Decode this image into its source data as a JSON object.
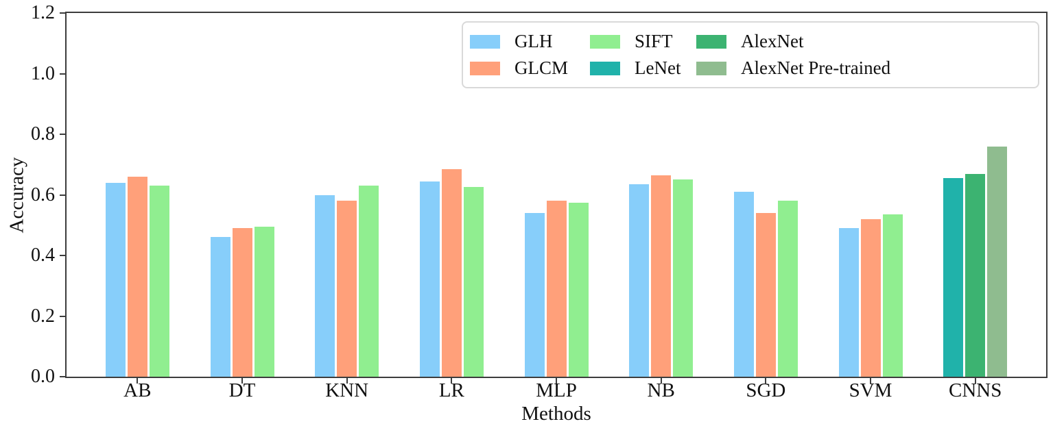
{
  "chart_data": {
    "type": "bar",
    "title": "",
    "xlabel": "Methods",
    "ylabel": "Accuracy",
    "ylim": [
      0,
      1.2
    ],
    "yticks": [
      0,
      0.2,
      0.4,
      0.6,
      0.8,
      1.0,
      1.2
    ],
    "grid": false,
    "legend_position": "upper right inside, 3 columns x 2 rows",
    "axis_color": "#3c3c3c",
    "legend_border_color": "#d9d9d9",
    "categories": [
      "AB",
      "DT",
      "KNN",
      "LR",
      "MLP",
      "NB",
      "SGD",
      "SVM",
      "CNNS"
    ],
    "series": [
      {
        "name": "GLH",
        "color": "#87CEFA",
        "values": [
          0.64,
          0.46,
          0.6,
          0.645,
          0.54,
          0.635,
          0.61,
          0.49,
          null
        ]
      },
      {
        "name": "GLCM",
        "color": "#FFA07A",
        "values": [
          0.66,
          0.49,
          0.58,
          0.685,
          0.58,
          0.665,
          0.54,
          0.52,
          null
        ]
      },
      {
        "name": "SIFT",
        "color": "#90EE90",
        "values": [
          0.63,
          0.495,
          0.63,
          0.625,
          0.575,
          0.65,
          0.58,
          0.535,
          null
        ]
      },
      {
        "name": "LeNet",
        "color": "#20B2AA",
        "values": [
          null,
          null,
          null,
          null,
          null,
          null,
          null,
          null,
          0.655
        ]
      },
      {
        "name": "AlexNet",
        "color": "#3CB371",
        "values": [
          null,
          null,
          null,
          null,
          null,
          null,
          null,
          null,
          0.67
        ]
      },
      {
        "name": "AlexNet Pre-trained",
        "color": "#8FBC8F",
        "values": [
          null,
          null,
          null,
          null,
          null,
          null,
          null,
          null,
          0.76
        ]
      }
    ]
  }
}
